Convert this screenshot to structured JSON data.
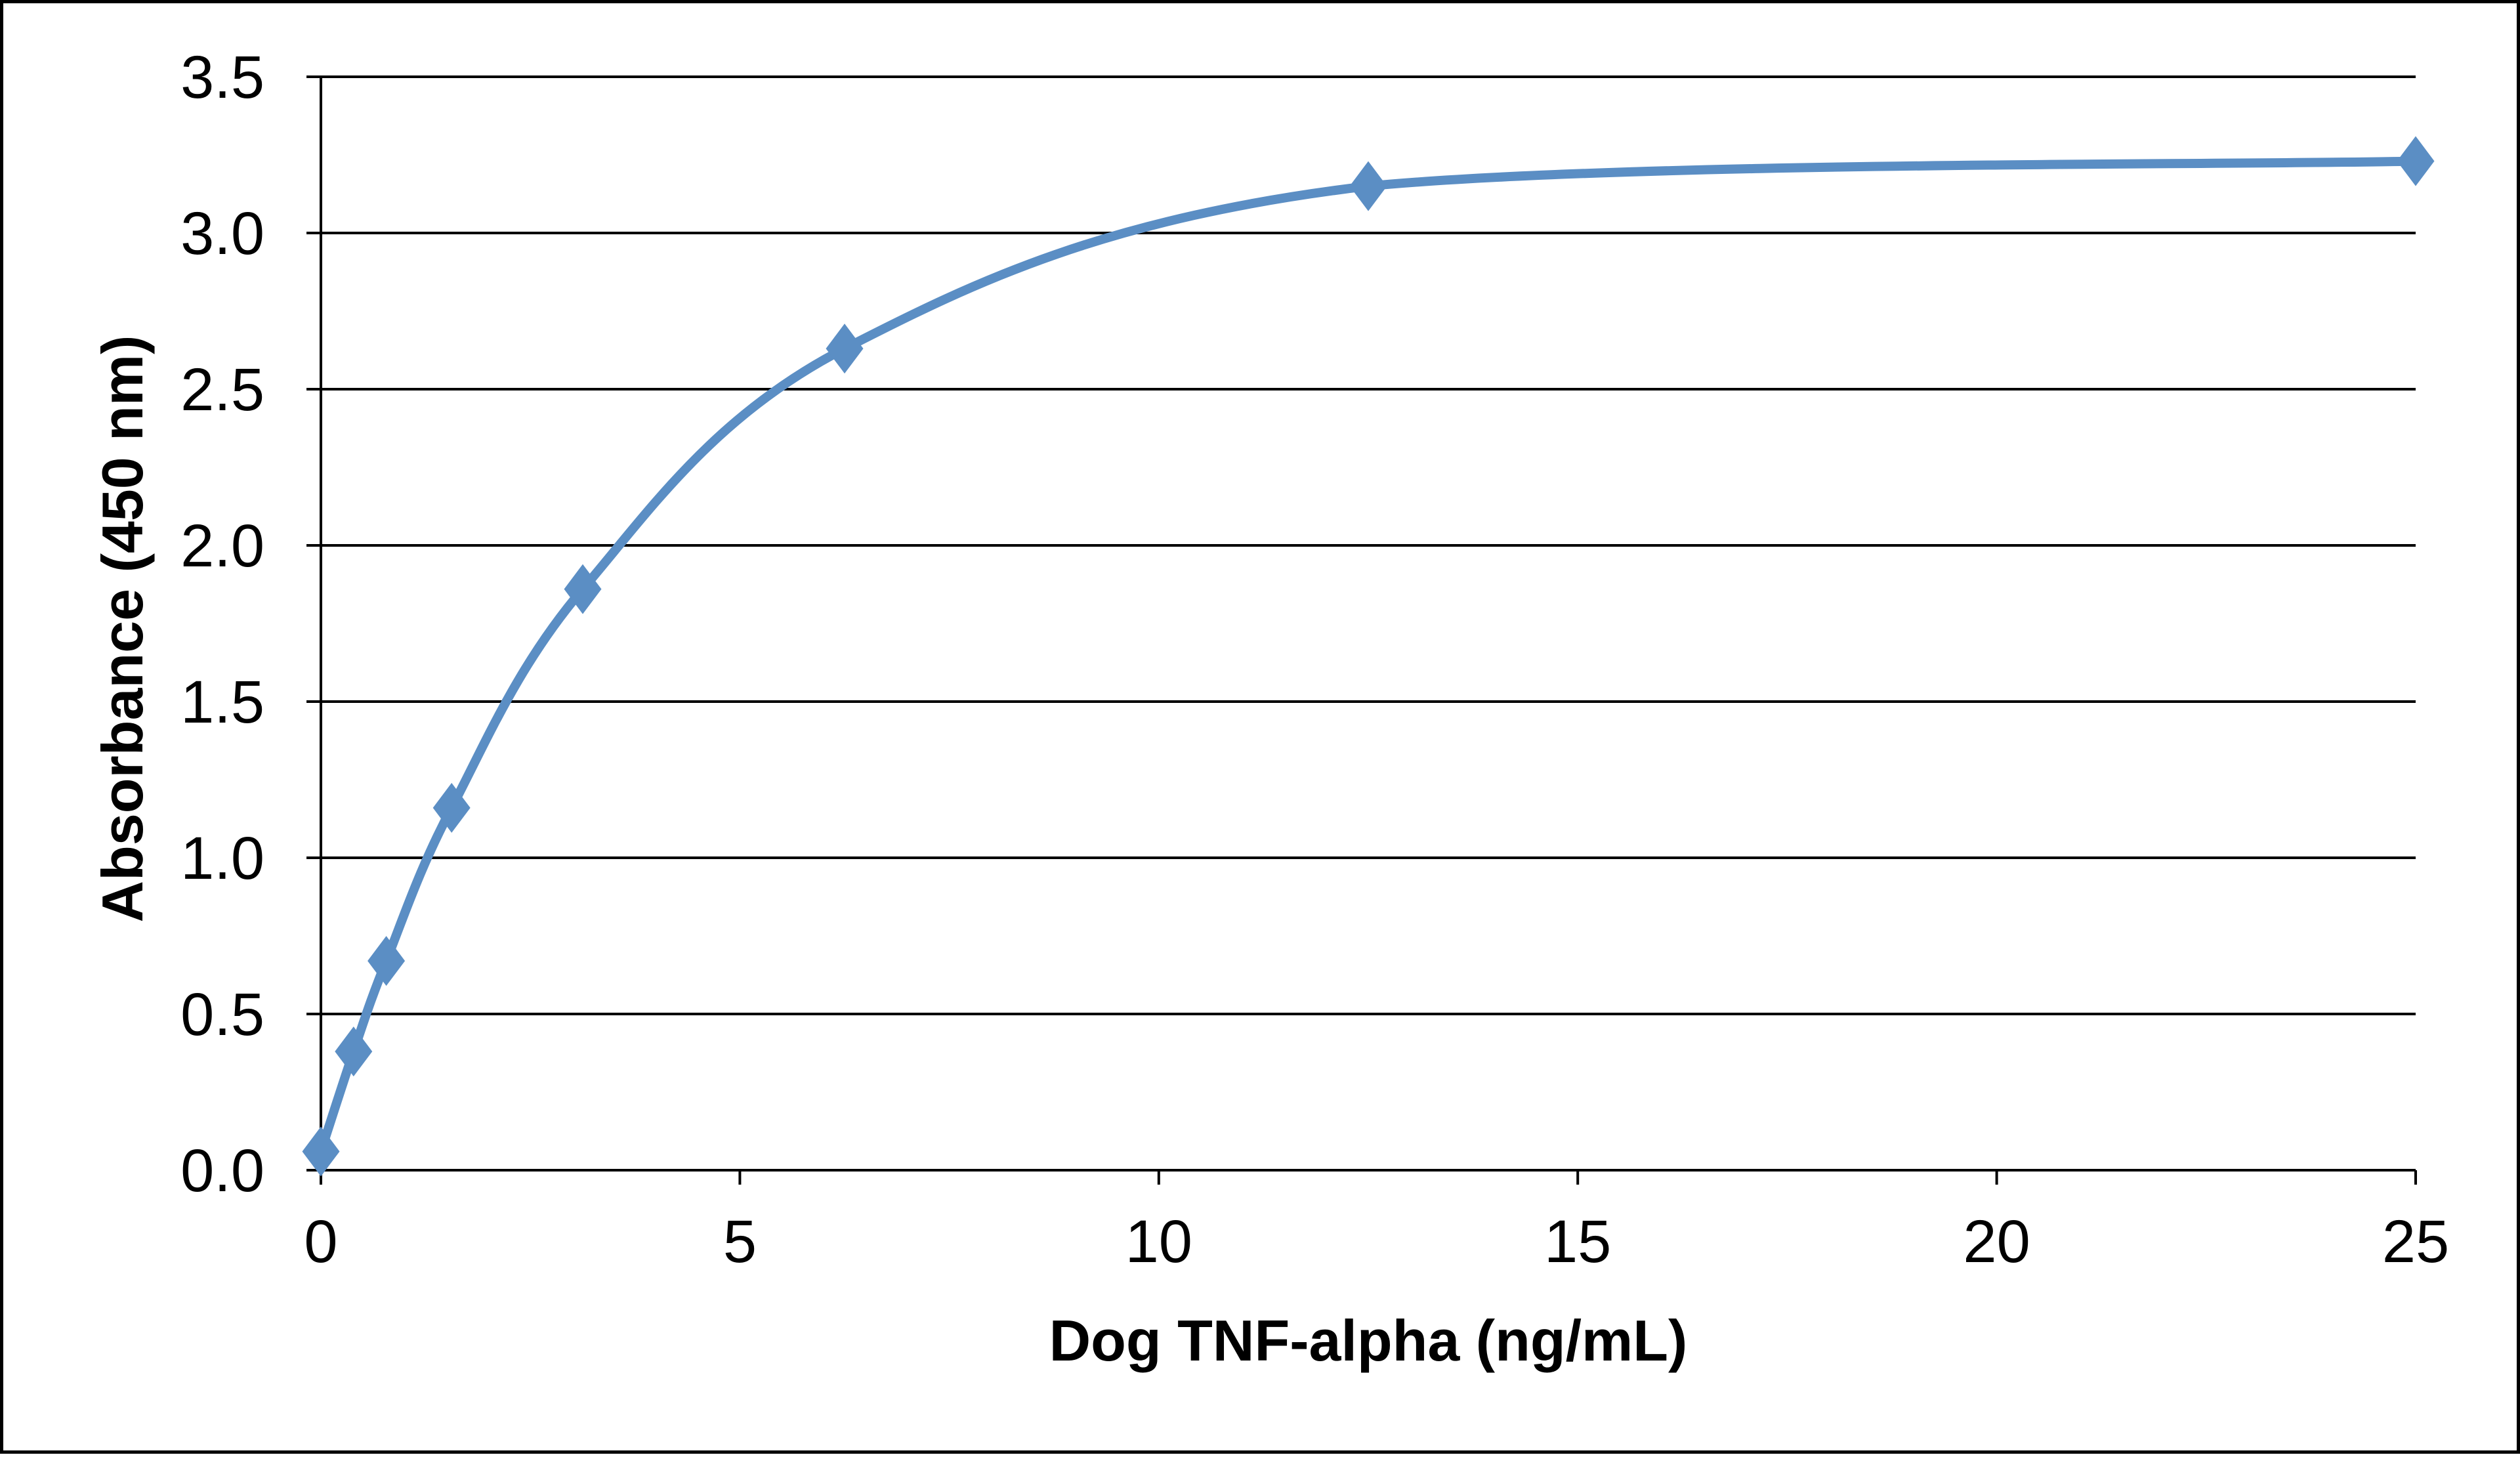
{
  "chart_data": {
    "type": "line",
    "title": "",
    "xlabel": "Dog TNF-alpha (ng/mL)",
    "ylabel": "Absorbance  (450  nm)",
    "xlim": [
      0,
      25
    ],
    "ylim": [
      0,
      3.5
    ],
    "x_ticks": [
      "0",
      "5",
      "10",
      "15",
      "20",
      "25"
    ],
    "y_ticks": [
      "0.0",
      "0.5",
      "1.0",
      "1.5",
      "2.0",
      "2.5",
      "3.0",
      "3.5"
    ],
    "grid": "horizontal",
    "legend": "none",
    "line_style": "smoothed",
    "marker": "diamond",
    "series": [
      {
        "color": "#5b8ec4",
        "x": [
          0,
          0.39,
          0.78,
          1.56,
          3.125,
          6.25,
          12.5,
          25
        ],
        "y": [
          0.06,
          0.38,
          0.67,
          1.16,
          1.86,
          2.63,
          3.15,
          3.23
        ]
      }
    ]
  }
}
